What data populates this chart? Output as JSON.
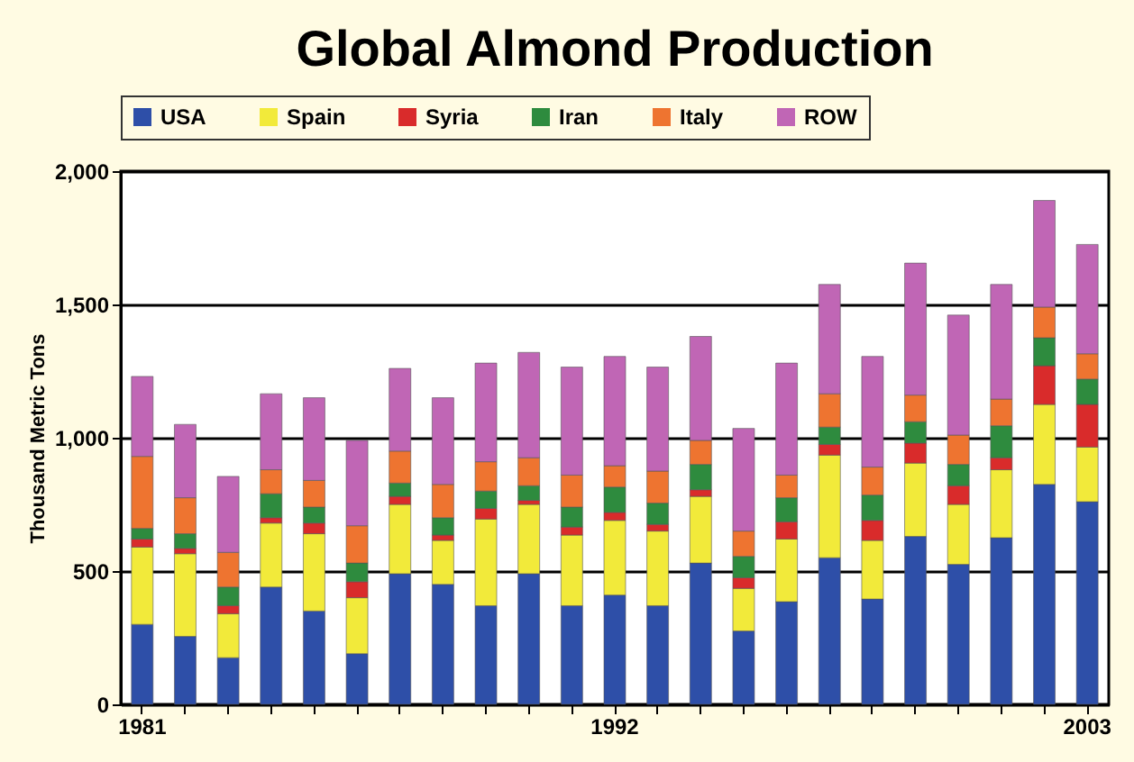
{
  "chart_data": {
    "type": "bar",
    "title": "Global Almond Production",
    "ylabel": "Thousand Metric Tons",
    "categories": [
      "1981",
      null,
      null,
      null,
      null,
      null,
      null,
      null,
      null,
      null,
      null,
      "1992",
      null,
      null,
      null,
      null,
      null,
      null,
      null,
      null,
      null,
      null,
      "2003"
    ],
    "stacked": true,
    "series": [
      {
        "name": "USA",
        "color": "#2e4fa8",
        "values": [
          300,
          255,
          175,
          440,
          350,
          190,
          490,
          450,
          370,
          490,
          370,
          410,
          370,
          530,
          275,
          385,
          550,
          395,
          630,
          525,
          625,
          825,
          760
        ]
      },
      {
        "name": "Spain",
        "color": "#f2ea3a",
        "values": [
          290,
          310,
          165,
          240,
          290,
          210,
          260,
          165,
          325,
          260,
          265,
          280,
          280,
          250,
          160,
          235,
          385,
          220,
          275,
          225,
          255,
          300,
          205
        ]
      },
      {
        "name": "Syria",
        "color": "#d92b2b",
        "values": [
          30,
          20,
          30,
          20,
          40,
          60,
          30,
          20,
          40,
          15,
          30,
          30,
          25,
          25,
          40,
          65,
          40,
          75,
          75,
          70,
          45,
          145,
          160
        ]
      },
      {
        "name": "Iran",
        "color": "#2e8b3e",
        "values": [
          40,
          55,
          70,
          90,
          60,
          70,
          50,
          65,
          65,
          55,
          75,
          95,
          80,
          95,
          80,
          90,
          65,
          95,
          80,
          80,
          120,
          105,
          95
        ]
      },
      {
        "name": "Italy",
        "color": "#ee7430",
        "values": [
          270,
          135,
          130,
          90,
          100,
          140,
          120,
          125,
          110,
          105,
          120,
          80,
          120,
          90,
          95,
          85,
          125,
          105,
          100,
          110,
          100,
          115,
          95
        ]
      },
      {
        "name": "ROW",
        "color": "#c066b5",
        "values": [
          300,
          275,
          285,
          285,
          310,
          320,
          310,
          325,
          370,
          395,
          405,
          410,
          390,
          390,
          385,
          420,
          410,
          415,
          495,
          450,
          430,
          400,
          410
        ]
      }
    ],
    "ylim": [
      0,
      2000
    ],
    "yticks": [
      0,
      {
        "value": 500,
        "label": "500"
      },
      {
        "value": 1000,
        "label": "1,000"
      },
      {
        "value": 1500,
        "label": "1,500"
      },
      {
        "value": 2000,
        "label": "2,000"
      }
    ],
    "grid": "y",
    "legend": "top"
  }
}
